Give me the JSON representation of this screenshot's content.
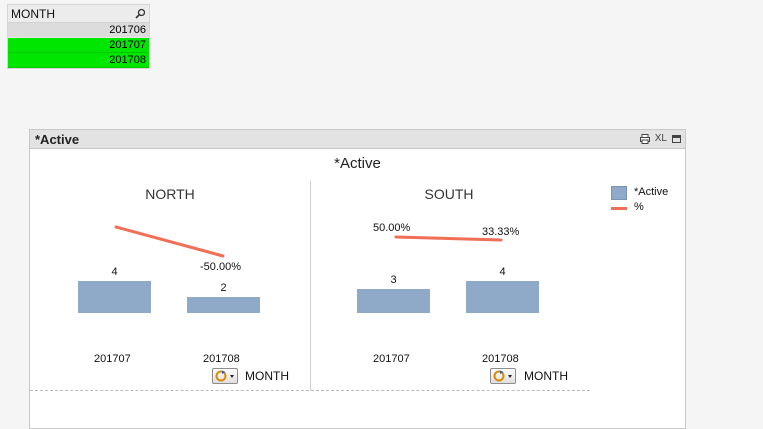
{
  "listbox": {
    "title": "MONTH",
    "search_icon": "search-icon",
    "items": [
      {
        "label": "201706",
        "state": "excluded"
      },
      {
        "label": "201707",
        "state": "selected"
      },
      {
        "label": "201708",
        "state": "selected"
      }
    ]
  },
  "chartbox": {
    "caption": "*Active",
    "tools": {
      "print_icon": "print-icon",
      "xl_label": "XL",
      "maximize_icon": "maximize-icon"
    }
  },
  "chart_data": {
    "type": "bar",
    "title": "*Active",
    "trellis_dimension": "MONTH",
    "categories": [
      "201707",
      "201708"
    ],
    "panels": [
      {
        "name": "NORTH",
        "series": [
          {
            "name": "*Active",
            "type": "bar",
            "values": [
              4,
              2
            ]
          },
          {
            "name": "%",
            "type": "line",
            "values": [
              null,
              -50.0
            ],
            "labels": [
              "",
              "-50.00%"
            ]
          }
        ]
      },
      {
        "name": "SOUTH",
        "series": [
          {
            "name": "*Active",
            "type": "bar",
            "values": [
              3,
              4
            ]
          },
          {
            "name": "%",
            "type": "line",
            "values": [
              50.0,
              33.33
            ],
            "labels": [
              "50.00%",
              "33.33%"
            ]
          }
        ]
      }
    ],
    "bar_ylim": [
      0,
      4
    ],
    "colors": {
      "bar": "#8fa9c8",
      "line": "#f26f57"
    },
    "legend": {
      "placement": "right",
      "entries": [
        {
          "label": "*Active",
          "kind": "bar"
        },
        {
          "label": "%",
          "kind": "line"
        }
      ]
    },
    "dimension_label": "MONTH",
    "cycle_icon": "cycle-group-icon"
  }
}
